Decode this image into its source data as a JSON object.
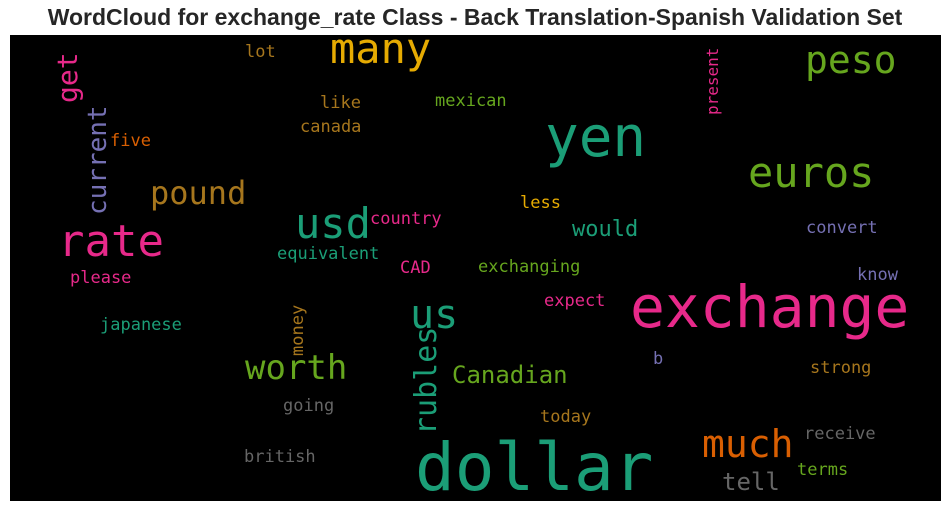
{
  "chart_data": {
    "type": "wordcloud",
    "title": "WordCloud for exchange_rate Class - Back Translation-Spanish Validation Set",
    "background": "#000000",
    "words": [
      {
        "text": "dollar",
        "color": "#1b9e77"
      },
      {
        "text": "exchange",
        "color": "#e7298a"
      },
      {
        "text": "yen",
        "color": "#1b9e77"
      },
      {
        "text": "rate",
        "color": "#e7298a"
      },
      {
        "text": "many",
        "color": "#e6ab02"
      },
      {
        "text": "euros",
        "color": "#66a61e"
      },
      {
        "text": "usd",
        "color": "#1b9e77"
      },
      {
        "text": "peso",
        "color": "#66a61e"
      },
      {
        "text": "much",
        "color": "#d95f02"
      },
      {
        "text": "pound",
        "color": "#a6761d"
      },
      {
        "text": "worth",
        "color": "#66a61e"
      },
      {
        "text": "us",
        "color": "#1b9e77"
      },
      {
        "text": "rubles",
        "color": "#1b9e77"
      },
      {
        "text": "current",
        "color": "#7570b3"
      },
      {
        "text": "Canadian",
        "color": "#66a61e"
      },
      {
        "text": "get",
        "color": "#e7298a"
      },
      {
        "text": "tell",
        "color": "#666666"
      },
      {
        "text": "would",
        "color": "#1b9e77"
      },
      {
        "text": "present",
        "color": "#e7298a"
      },
      {
        "text": "mexican",
        "color": "#66a61e"
      },
      {
        "text": "like",
        "color": "#a6761d"
      },
      {
        "text": "canada",
        "color": "#a6761d"
      },
      {
        "text": "lot",
        "color": "#a6761d"
      },
      {
        "text": "five",
        "color": "#d95f02"
      },
      {
        "text": "country",
        "color": "#e7298a"
      },
      {
        "text": "less",
        "color": "#e6ab02"
      },
      {
        "text": "convert",
        "color": "#7570b3"
      },
      {
        "text": "equivalent",
        "color": "#1b9e77"
      },
      {
        "text": "CAD",
        "color": "#e7298a"
      },
      {
        "text": "exchanging",
        "color": "#66a61e"
      },
      {
        "text": "please",
        "color": "#e7298a"
      },
      {
        "text": "know",
        "color": "#7570b3"
      },
      {
        "text": "expect",
        "color": "#e7298a"
      },
      {
        "text": "japanese",
        "color": "#1b9e77"
      },
      {
        "text": "money",
        "color": "#a6761d"
      },
      {
        "text": "b",
        "color": "#7570b3"
      },
      {
        "text": "strong",
        "color": "#a6761d"
      },
      {
        "text": "going",
        "color": "#666666"
      },
      {
        "text": "today",
        "color": "#a6761d"
      },
      {
        "text": "receive",
        "color": "#666666"
      },
      {
        "text": "british",
        "color": "#666666"
      },
      {
        "text": "terms",
        "color": "#66a61e"
      }
    ]
  }
}
